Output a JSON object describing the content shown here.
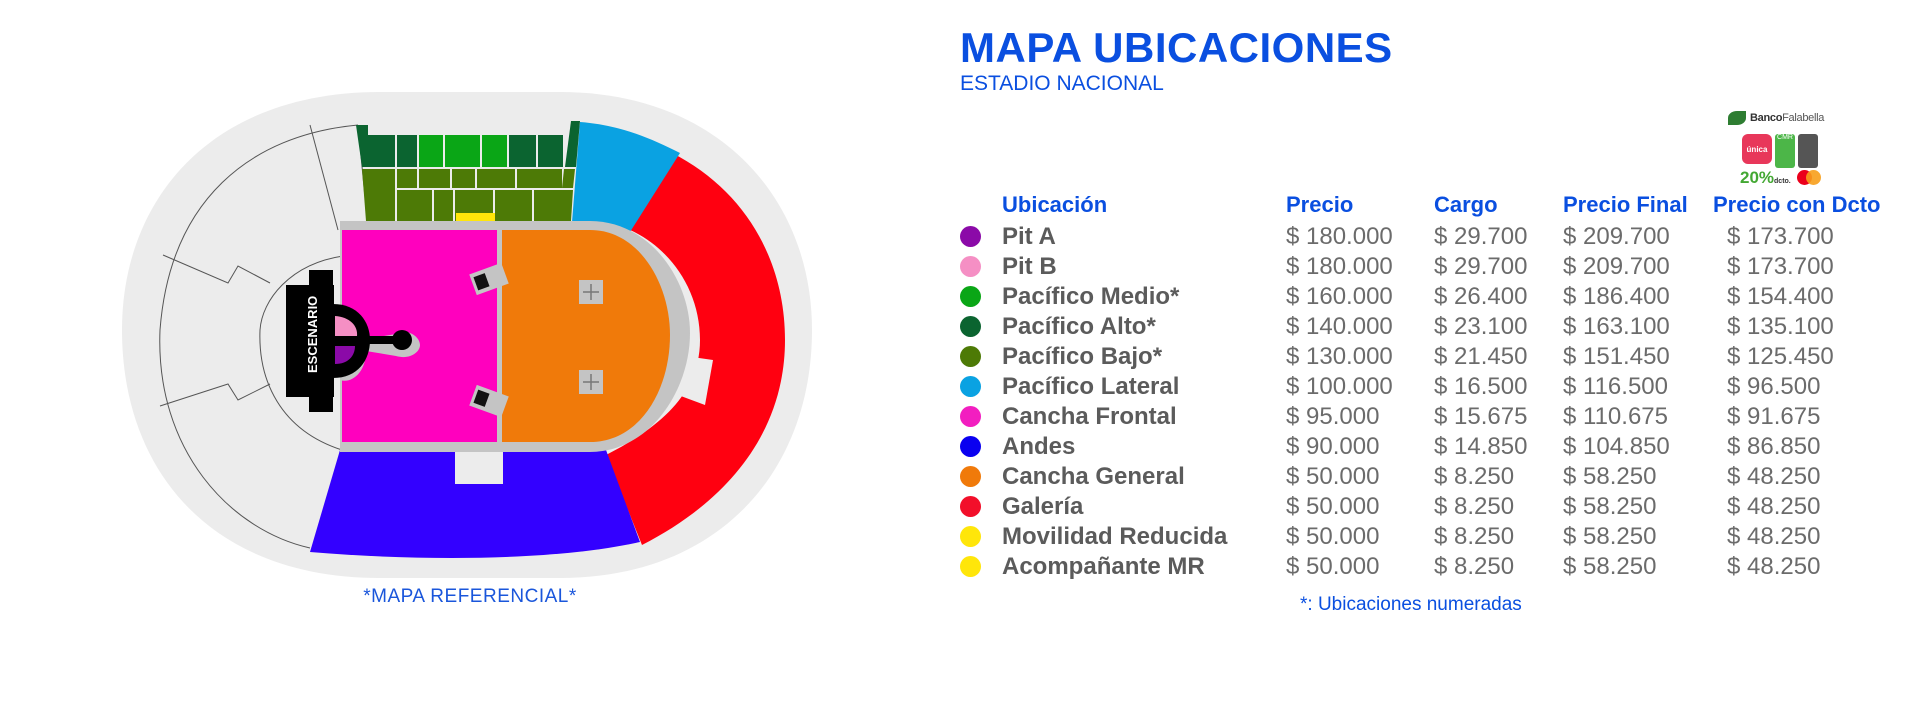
{
  "header": {
    "title": "MAPA UBICACIONES",
    "subtitle": "ESTADIO NACIONAL"
  },
  "promo": {
    "bank_name_bold": "Banco",
    "bank_name": "Falabella",
    "badge_label": "única",
    "card_cmr_label": "CMR",
    "discount": "20%",
    "discount_suffix": "dcto."
  },
  "map": {
    "stage_label": "ESCENARIO",
    "note": "*MAPA REFERENCIAL*"
  },
  "table": {
    "headers": {
      "location": "Ubicación",
      "price": "Precio",
      "fee": "Cargo",
      "final_price": "Precio Final",
      "discount_price": "Precio con Dcto"
    },
    "rows": [
      {
        "color": "#8b0aa8",
        "location": "Pit A",
        "price": "$ 180.000",
        "fee": "$ 29.700",
        "final_price": "$ 209.700",
        "discount_price": "$ 173.700"
      },
      {
        "color": "#f58fc4",
        "location": "Pit B",
        "price": "$ 180.000",
        "fee": "$ 29.700",
        "final_price": "$ 209.700",
        "discount_price": "$ 173.700"
      },
      {
        "color": "#0aa616",
        "location": "Pacífico Medio*",
        "price": "$ 160.000",
        "fee": "$ 26.400",
        "final_price": "$ 186.400",
        "discount_price": "$ 154.400"
      },
      {
        "color": "#0b6430",
        "location": "Pacífico Alto*",
        "price": "$ 140.000",
        "fee": "$ 23.100",
        "final_price": "$ 163.100",
        "discount_price": "$ 135.100"
      },
      {
        "color": "#4d7a06",
        "location": "Pacífico Bajo*",
        "price": "$ 130.000",
        "fee": "$ 21.450",
        "final_price": "$ 151.450",
        "discount_price": "$ 125.450"
      },
      {
        "color": "#0aa2e2",
        "location": "Pacífico Lateral",
        "price": "$ 100.000",
        "fee": "$ 16.500",
        "final_price": "$ 116.500",
        "discount_price": "$ 96.500"
      },
      {
        "color": "#f21ec0",
        "location": "Cancha Frontal",
        "price": "$ 95.000",
        "fee": "$ 15.675",
        "final_price": "$ 110.675",
        "discount_price": "$ 91.675"
      },
      {
        "color": "#0a00f0",
        "location": "Andes",
        "price": "$ 90.000",
        "fee": "$ 14.850",
        "final_price": "$ 104.850",
        "discount_price": "$ 86.850"
      },
      {
        "color": "#f07a0a",
        "location": "Cancha General",
        "price": "$ 50.000",
        "fee": "$ 8.250",
        "final_price": "$ 58.250",
        "discount_price": "$ 48.250"
      },
      {
        "color": "#f20f2a",
        "location": "Galería",
        "price": "$ 50.000",
        "fee": "$ 8.250",
        "final_price": "$ 58.250",
        "discount_price": "$ 48.250"
      },
      {
        "color": "#ffe60a",
        "location": "Movilidad Reducida",
        "price": "$ 50.000",
        "fee": "$ 8.250",
        "final_price": "$ 58.250",
        "discount_price": "$ 48.250"
      },
      {
        "color": "#ffe60a",
        "location": "Acompañante MR",
        "price": "$ 50.000",
        "fee": "$ 8.250",
        "final_price": "$ 58.250",
        "discount_price": "$ 48.250"
      }
    ]
  },
  "footnote": "*:  Ubicaciones numeradas",
  "colors": {
    "accent_blue": "#0a4fe0",
    "text_gray": "#6b6b6b",
    "stadium_bg": "#ececec",
    "walkway": "#c4c4c4"
  }
}
